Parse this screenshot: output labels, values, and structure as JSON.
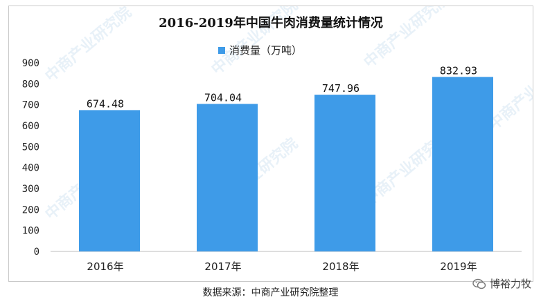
{
  "chart_data": {
    "type": "bar",
    "title": "2016-2019年中国牛肉消费量统计情况",
    "categories": [
      "2016年",
      "2017年",
      "2018年",
      "2019年"
    ],
    "series": [
      {
        "name": "消费量（万吨）",
        "values": [
          674.48,
          704.04,
          747.96,
          832.93
        ]
      }
    ],
    "value_labels": [
      "674.48",
      "704.04",
      "747.96",
      "832.93"
    ],
    "ylim": [
      0,
      900
    ],
    "yticks": [
      0,
      100,
      200,
      300,
      400,
      500,
      600,
      700,
      800,
      900
    ],
    "grid": false,
    "legend_position": "top",
    "bar_color": "#3e9be8"
  },
  "watermark": {
    "text": "中商产业研究院"
  },
  "footer": {
    "source": "数据来源：中商产业研究院整理",
    "brand": "博裕力牧",
    "brand_icon": "wechat-icon"
  }
}
